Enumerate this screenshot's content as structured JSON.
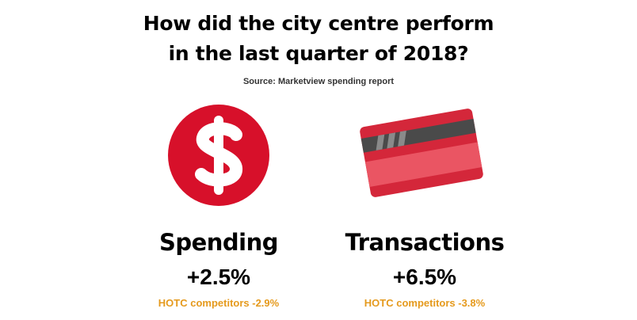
{
  "header": {
    "title_line1": "How did the city centre perform",
    "title_line2": "in the last quarter of 2018?",
    "source": "Source: Marketview spending report"
  },
  "stats": [
    {
      "icon": "dollar-icon",
      "label": "Spending",
      "value": "+2.5%",
      "comparison": "HOTC competitors -2.9%"
    },
    {
      "icon": "credit-card-icon",
      "label": "Transactions",
      "value": "+6.5%",
      "comparison": "HOTC competitors -3.8%"
    }
  ],
  "colors": {
    "accent_red": "#d7102a",
    "card_pink": "#ea5563",
    "card_dark_pink": "#d4273a",
    "stripe_gray": "#4a4a4a",
    "comparison_orange": "#e59a1d"
  }
}
